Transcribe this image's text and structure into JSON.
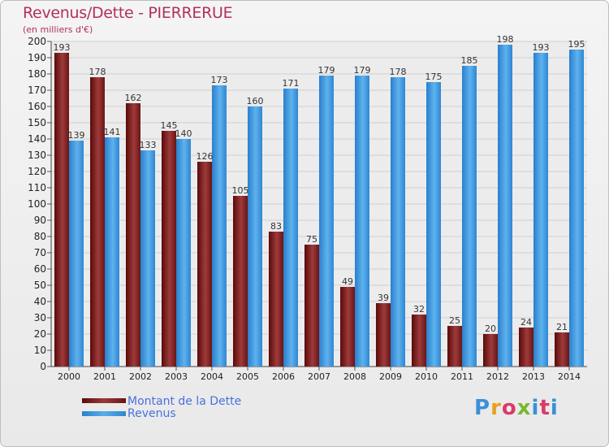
{
  "title": "Revenus/Dette - PIERRERUE",
  "subtitle": "(en milliers d'€)",
  "logo": "Proxiti",
  "legend": {
    "debt": "Montant de la Dette",
    "revenue": "Revenus"
  },
  "colors": {
    "debt": "#7b1f1f",
    "revenue": "#4aa3e8",
    "title": "#b03060"
  },
  "chart_data": {
    "type": "bar",
    "categories": [
      "2000",
      "2001",
      "2002",
      "2003",
      "2004",
      "2005",
      "2006",
      "2007",
      "2008",
      "2009",
      "2010",
      "2011",
      "2012",
      "2013",
      "2014"
    ],
    "series": [
      {
        "name": "Montant de la Dette",
        "values": [
          193,
          178,
          162,
          145,
          126,
          105,
          83,
          75,
          49,
          39,
          32,
          25,
          20,
          24,
          21
        ]
      },
      {
        "name": "Revenus",
        "values": [
          139,
          141,
          133,
          140,
          173,
          160,
          171,
          179,
          179,
          178,
          175,
          185,
          198,
          193,
          195
        ]
      }
    ],
    "ylim": [
      0,
      200
    ],
    "yticks": [
      0,
      10,
      20,
      30,
      40,
      50,
      60,
      70,
      80,
      90,
      100,
      110,
      120,
      130,
      140,
      150,
      160,
      170,
      180,
      190,
      200
    ],
    "grid": true,
    "legend_position": "bottom-left"
  }
}
